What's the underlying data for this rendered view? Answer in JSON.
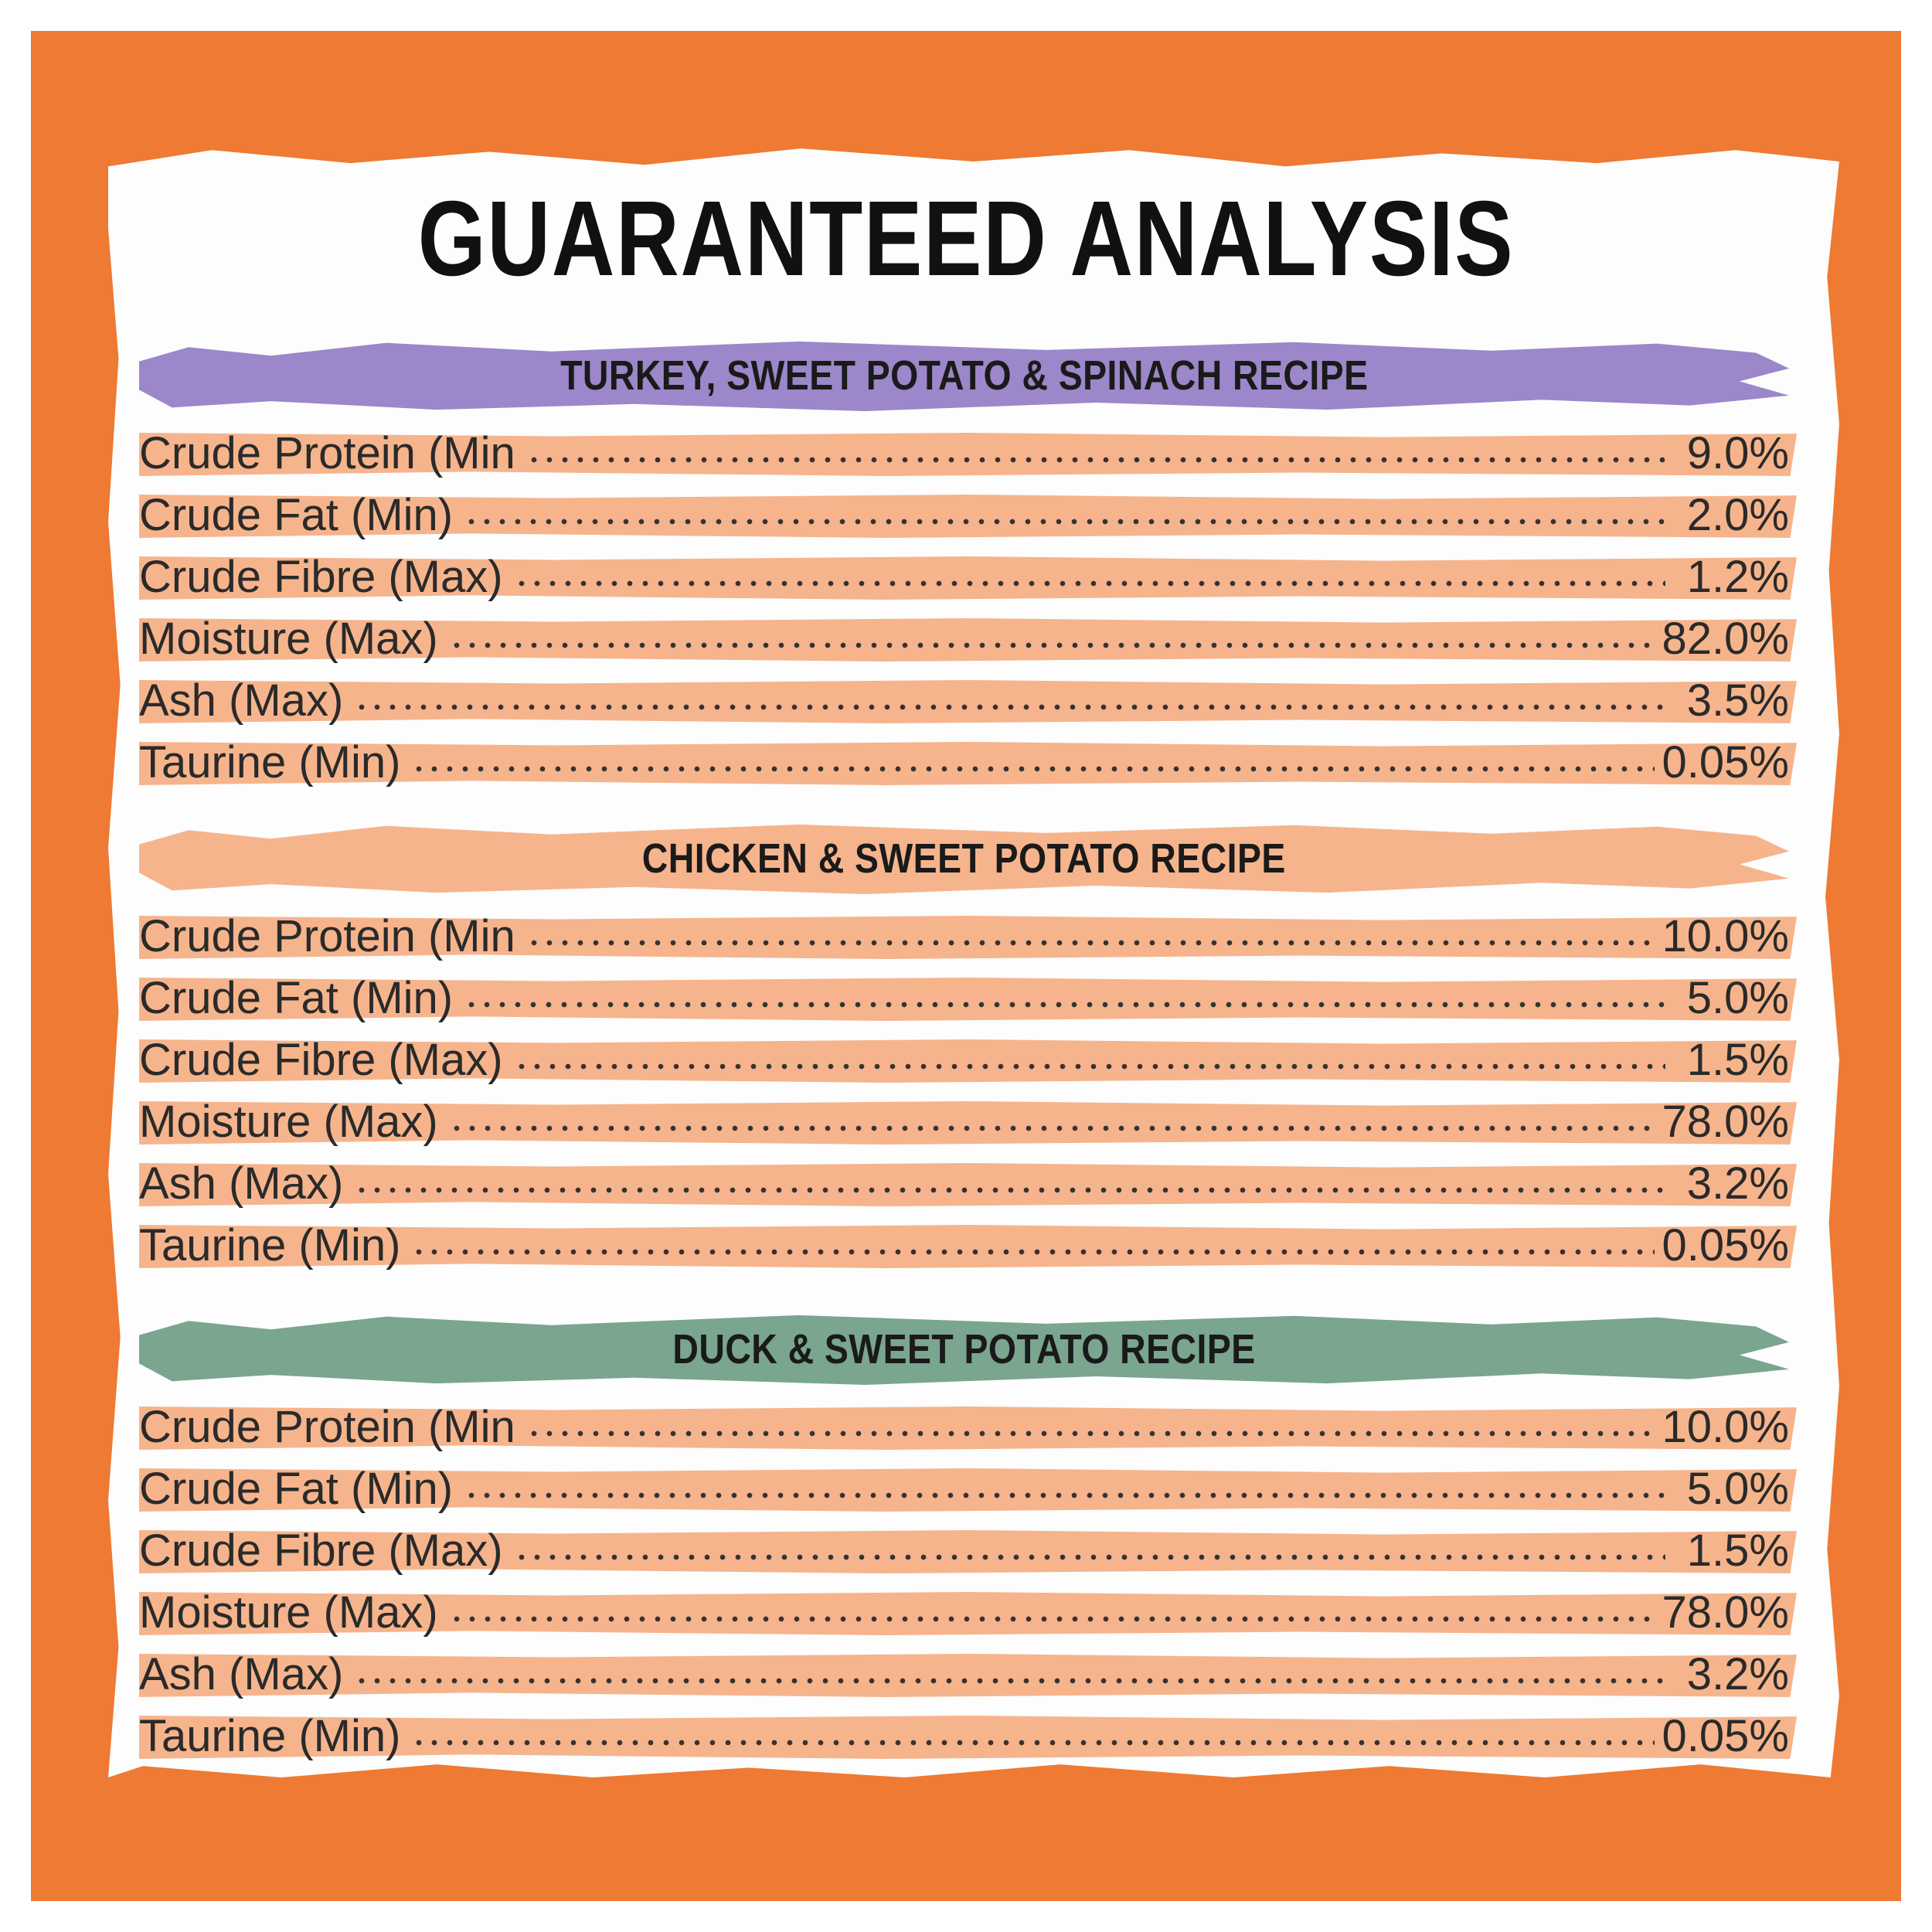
{
  "title": "GUARANTEED ANALYSIS",
  "colors": {
    "frame": "#ee7a33",
    "turkey_header": "#9b87c9",
    "chicken_header": "#f6b48c",
    "duck_header": "#7aa58f",
    "row_band": "#f6b48c"
  },
  "sections": [
    {
      "name": "TURKEY, SWEET POTATO & SPINACH RECIPE",
      "rows": [
        {
          "label": "Crude Protein (Min",
          "value": "9.0%"
        },
        {
          "label": "Crude Fat (Min)",
          "value": "2.0%"
        },
        {
          "label": "Crude Fibre (Max)",
          "value": "1.2%"
        },
        {
          "label": "Moisture (Max)",
          "value": "82.0%"
        },
        {
          "label": "Ash (Max)",
          "value": "3.5%"
        },
        {
          "label": "Taurine (Min)",
          "value": "0.05%"
        }
      ]
    },
    {
      "name": "CHICKEN & SWEET POTATO RECIPE",
      "rows": [
        {
          "label": "Crude Protein (Min",
          "value": "10.0%"
        },
        {
          "label": "Crude Fat (Min)",
          "value": "5.0%"
        },
        {
          "label": "Crude Fibre (Max)",
          "value": "1.5%"
        },
        {
          "label": "Moisture (Max)",
          "value": "78.0%"
        },
        {
          "label": "Ash (Max)",
          "value": "3.2%"
        },
        {
          "label": "Taurine (Min)",
          "value": "0.05%"
        }
      ]
    },
    {
      "name": "DUCK & SWEET POTATO RECIPE",
      "rows": [
        {
          "label": "Crude Protein (Min",
          "value": "10.0%"
        },
        {
          "label": "Crude Fat (Min)",
          "value": "5.0%"
        },
        {
          "label": "Crude Fibre (Max)",
          "value": "1.5%"
        },
        {
          "label": "Moisture (Max)",
          "value": "78.0%"
        },
        {
          "label": "Ash (Max)",
          "value": "3.2%"
        },
        {
          "label": "Taurine (Min)",
          "value": "0.05%"
        }
      ]
    }
  ]
}
